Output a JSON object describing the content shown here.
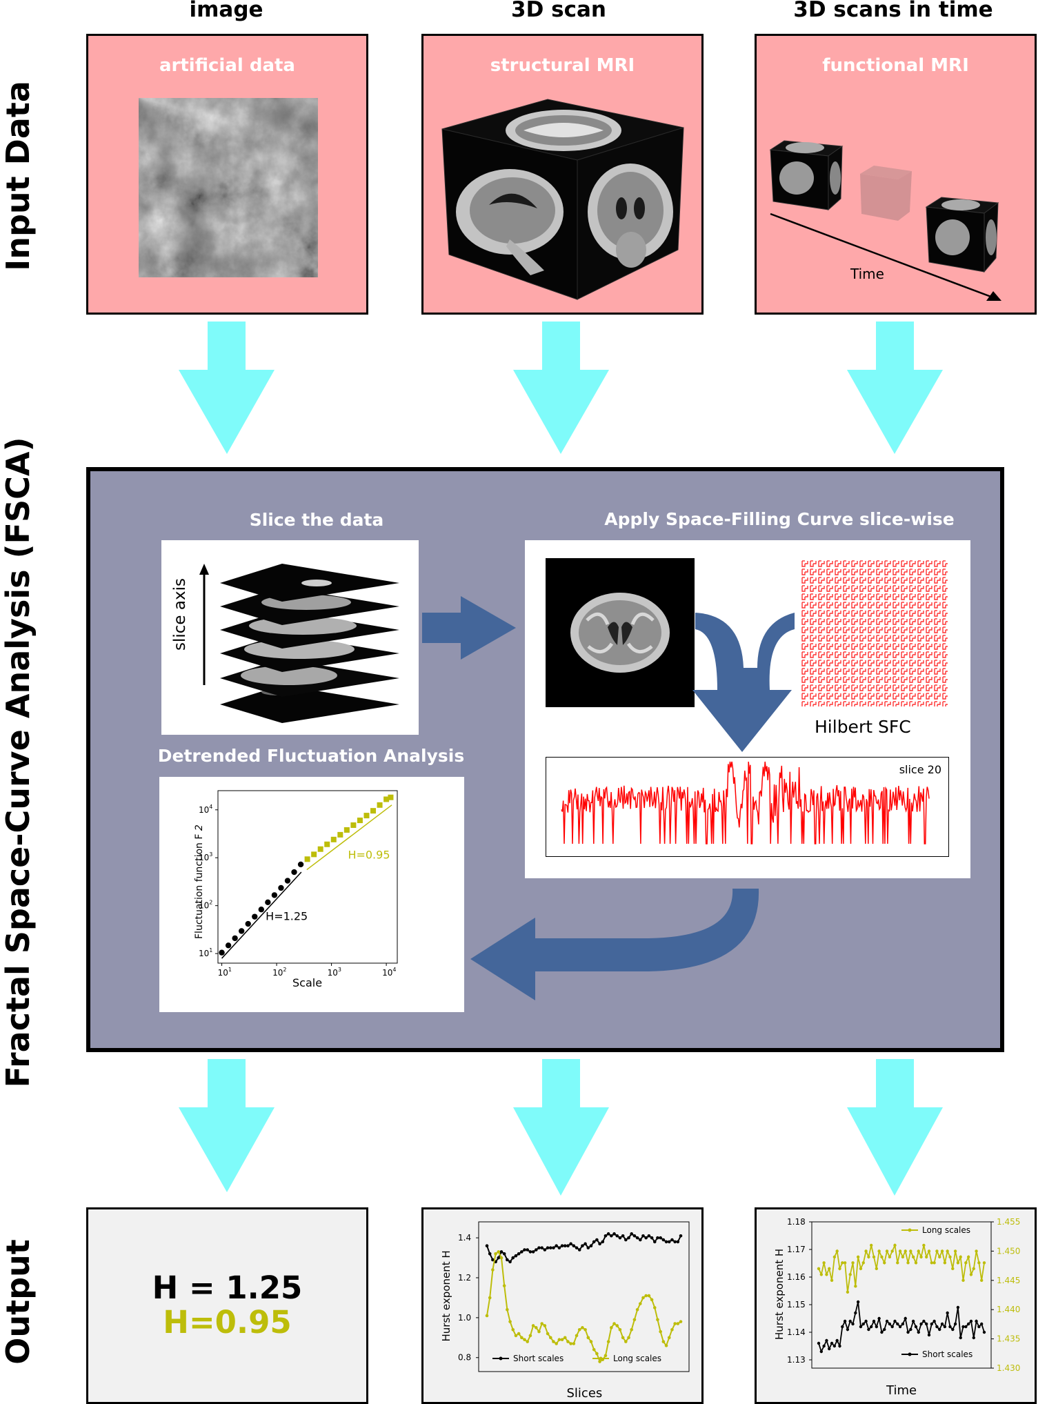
{
  "columns": {
    "image": "image",
    "scan3d": "3D scan",
    "scans_time": "3D scans in time"
  },
  "rows": {
    "input": "Input Data",
    "fsca": "Fractal Space-Curve Analysis (FSCA)",
    "output": "Output"
  },
  "inputs": {
    "artificial": "artificial data",
    "structural": "structural MRI",
    "functional": "functional MRI",
    "time_label": "Time"
  },
  "fsca": {
    "slice_title": "Slice the data",
    "slice_axis": "slice axis",
    "sfc_title": "Apply Space-Filling Curve slice-wise",
    "hilbert_label": "Hilbert SFC",
    "slice_label": "slice 20",
    "dfa_title": "Detrended Fluctuation Analysis"
  },
  "colors": {
    "pink": "#fea8aa",
    "cyan_arrow": "#7ffbfa",
    "fsca_bg": "#9294ae",
    "blue_arrow": "#44669a",
    "yellow": "#bdbd0a",
    "signal_red": "#ff0000"
  },
  "dfa_chart": {
    "chart_data": {
      "type": "scatter",
      "xlabel": "Scale",
      "ylabel": "Fluctuation function F",
      "ylabel_sub": "2",
      "xticks": [
        "10",
        "10",
        "10",
        "10"
      ],
      "xtick_exps": [
        "1",
        "2",
        "3",
        "4"
      ],
      "yticks": [
        "10",
        "10",
        "10",
        "10"
      ],
      "ytick_exps": [
        "1",
        "2",
        "3",
        "4"
      ],
      "x_log_range": [
        0.93,
        4.2
      ],
      "y_log_range": [
        0.8,
        4.4
      ],
      "series": [
        {
          "name": "H=1.25",
          "color": "#000000",
          "x": [
            1.0,
            1.12,
            1.24,
            1.36,
            1.48,
            1.6,
            1.72,
            1.84,
            1.96,
            2.08,
            2.2,
            2.32,
            2.44
          ],
          "y": [
            1.02,
            1.17,
            1.32,
            1.47,
            1.62,
            1.77,
            1.92,
            2.07,
            2.22,
            2.37,
            2.52,
            2.7,
            2.86
          ]
        },
        {
          "name": "H=0.95",
          "color": "#bdbd0a",
          "x": [
            2.56,
            2.68,
            2.8,
            2.92,
            3.04,
            3.16,
            3.28,
            3.4,
            3.52,
            3.64,
            3.76,
            3.88,
            4.0,
            4.08
          ],
          "y": [
            2.97,
            3.07,
            3.18,
            3.28,
            3.38,
            3.48,
            3.58,
            3.68,
            3.78,
            3.88,
            3.98,
            4.1,
            4.22,
            4.26
          ]
        }
      ],
      "annotations": [
        "H=1.25",
        "H=0.95"
      ]
    }
  },
  "outputs": {
    "h_short": "H = 1.25",
    "h_long": "H=0.95",
    "slices_chart": {
      "chart_data": {
        "type": "line",
        "xlabel": "Slices",
        "ylabel": "Hurst exponent H",
        "yticks": [
          "0.8",
          "1.0",
          "1.2",
          "1.4"
        ],
        "ylim": [
          0.73,
          1.48
        ],
        "legend": [
          "Short scales",
          "Long scales"
        ],
        "series": [
          {
            "name": "Short scales",
            "color": "#000000",
            "values": [
              1.36,
              1.32,
              1.29,
              1.28,
              1.3,
              1.33,
              1.32,
              1.29,
              1.28,
              1.3,
              1.31,
              1.32,
              1.33,
              1.34,
              1.34,
              1.33,
              1.33,
              1.34,
              1.35,
              1.35,
              1.34,
              1.35,
              1.35,
              1.35,
              1.36,
              1.35,
              1.36,
              1.36,
              1.36,
              1.37,
              1.36,
              1.35,
              1.34,
              1.36,
              1.37,
              1.35,
              1.36,
              1.38,
              1.39,
              1.37,
              1.38,
              1.41,
              1.42,
              1.41,
              1.42,
              1.41,
              1.4,
              1.41,
              1.39,
              1.4,
              1.42,
              1.41,
              1.4,
              1.39,
              1.41,
              1.4,
              1.41,
              1.4,
              1.38,
              1.4,
              1.4,
              1.39,
              1.38,
              1.38,
              1.39,
              1.38,
              1.38,
              1.41
            ]
          },
          {
            "name": "Long scales",
            "color": "#bdbd0a",
            "values": [
              1.01,
              1.1,
              1.24,
              1.32,
              1.33,
              1.3,
              1.16,
              1.04,
              0.98,
              0.94,
              0.91,
              0.92,
              0.9,
              0.89,
              0.88,
              0.91,
              0.96,
              0.95,
              0.93,
              0.97,
              0.96,
              0.92,
              0.9,
              0.88,
              0.87,
              0.89,
              0.89,
              0.9,
              0.88,
              0.87,
              0.87,
              0.91,
              0.94,
              0.95,
              0.94,
              0.9,
              0.88,
              0.84,
              0.82,
              0.78,
              0.79,
              0.81,
              0.88,
              0.95,
              0.97,
              0.96,
              0.94,
              0.9,
              0.88,
              0.9,
              0.94,
              0.99,
              1.04,
              1.07,
              1.1,
              1.11,
              1.11,
              1.09,
              1.05,
              0.99,
              0.93,
              0.88,
              0.86,
              0.9,
              0.94,
              0.97,
              0.97,
              0.98
            ]
          }
        ]
      }
    },
    "time_chart": {
      "chart_data": {
        "type": "line",
        "xlabel": "Time",
        "ylabel": "Hurst exponent H",
        "yticks_left": [
          "1.13",
          "1.14",
          "1.15",
          "1.16",
          "1.17",
          "1.18"
        ],
        "ylim_left": [
          1.127,
          1.18
        ],
        "yticks_right": [
          "1.430",
          "1.435",
          "1.440",
          "1.445",
          "1.450",
          "1.455"
        ],
        "ylim_right": [
          1.43,
          1.455
        ],
        "legend": [
          "Long scales",
          "Short scales"
        ],
        "series": [
          {
            "name": "Short scales",
            "axis": "left",
            "color": "#000000",
            "values": [
              1.136,
              1.133,
              1.135,
              1.137,
              1.134,
              1.136,
              1.135,
              1.137,
              1.135,
              1.142,
              1.144,
              1.141,
              1.144,
              1.143,
              1.147,
              1.151,
              1.142,
              1.143,
              1.144,
              1.141,
              1.142,
              1.144,
              1.142,
              1.145,
              1.14,
              1.141,
              1.144,
              1.143,
              1.142,
              1.144,
              1.143,
              1.142,
              1.143,
              1.145,
              1.14,
              1.141,
              1.144,
              1.142,
              1.14,
              1.143,
              1.144,
              1.143,
              1.139,
              1.143,
              1.144,
              1.142,
              1.141,
              1.143,
              1.142,
              1.147,
              1.142,
              1.141,
              1.143,
              1.149,
              1.138,
              1.142,
              1.142,
              1.143,
              1.144,
              1.138,
              1.144,
              1.142,
              1.143,
              1.14
            ]
          },
          {
            "name": "Long scales",
            "axis": "right",
            "color": "#bdbd0a",
            "values": [
              1.447,
              1.446,
              1.448,
              1.446,
              1.447,
              1.445,
              1.449,
              1.45,
              1.447,
              1.448,
              1.448,
              1.443,
              1.446,
              1.448,
              1.444,
              1.449,
              1.447,
              1.448,
              1.45,
              1.449,
              1.451,
              1.449,
              1.447,
              1.45,
              1.449,
              1.448,
              1.45,
              1.449,
              1.45,
              1.451,
              1.448,
              1.45,
              1.449,
              1.45,
              1.448,
              1.45,
              1.449,
              1.448,
              1.45,
              1.449,
              1.451,
              1.449,
              1.45,
              1.448,
              1.448,
              1.45,
              1.449,
              1.45,
              1.448,
              1.45,
              1.449,
              1.447,
              1.45,
              1.448,
              1.449,
              1.445,
              1.448,
              1.449,
              1.446,
              1.447,
              1.45,
              1.448,
              1.445,
              1.448
            ]
          }
        ]
      }
    }
  }
}
